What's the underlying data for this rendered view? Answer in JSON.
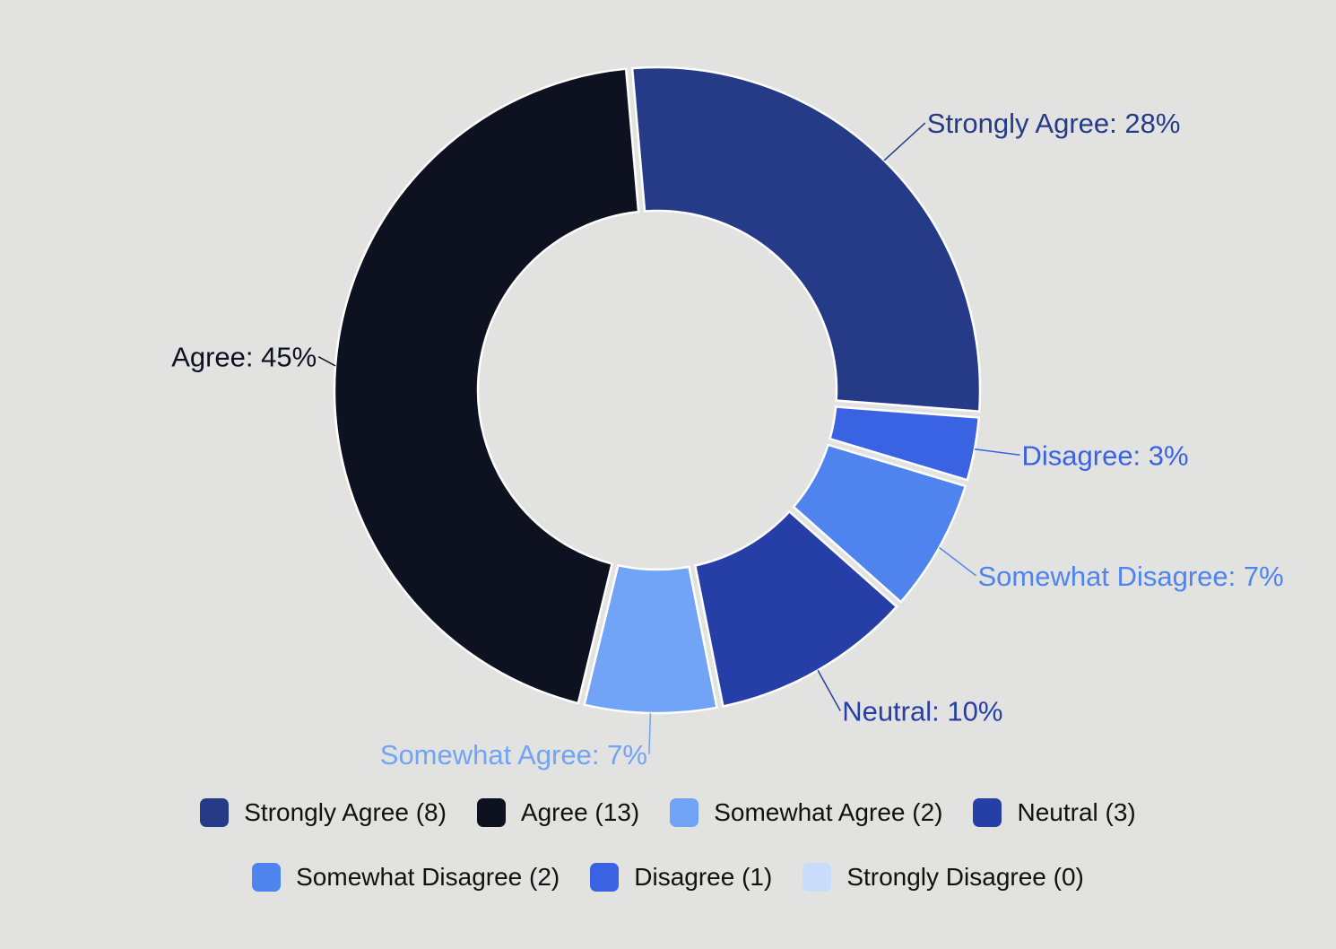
{
  "chart_data": {
    "type": "pie",
    "variant": "donut",
    "title": "",
    "slices": [
      {
        "name": "Strongly Agree",
        "count": 8,
        "percent_label": "Strongly Agree: 28%",
        "legend_label": "Strongly Agree (8)",
        "color": "#263b87"
      },
      {
        "name": "Disagree",
        "count": 1,
        "percent_label": "Disagree: 3%",
        "legend_label": "Disagree (1)",
        "color": "#3963e3"
      },
      {
        "name": "Somewhat Disagree",
        "count": 2,
        "percent_label": "Somewhat Disagree: 7%",
        "legend_label": "Somewhat Disagree (2)",
        "color": "#4f84ef"
      },
      {
        "name": "Neutral",
        "count": 3,
        "percent_label": "Neutral: 10%",
        "legend_label": "Neutral (3)",
        "color": "#263fa7"
      },
      {
        "name": "Somewhat Agree",
        "count": 2,
        "percent_label": "Somewhat Agree: 7%",
        "legend_label": "Somewhat Agree (2)",
        "color": "#71a4f6"
      },
      {
        "name": "Agree",
        "count": 13,
        "percent_label": "Agree: 45%",
        "legend_label": "Agree (13)",
        "color": "#0d1120"
      }
    ],
    "legend": {
      "placement": "bottom",
      "rows": [
        [
          {
            "label": "Strongly Agree (8)",
            "color": "#263b87"
          },
          {
            "label": "Agree (13)",
            "color": "#0d1120"
          },
          {
            "label": "Somewhat Agree (2)",
            "color": "#71a4f6"
          },
          {
            "label": "Neutral (3)",
            "color": "#263fa7"
          }
        ],
        [
          {
            "label": "Somewhat Disagree (2)",
            "color": "#4f84ef"
          },
          {
            "label": "Disagree (1)",
            "color": "#3963e3"
          },
          {
            "label": "Strongly Disagree (0)",
            "color": "#c9dcfb"
          }
        ]
      ]
    }
  },
  "colors": {
    "background": "#e2e2e1",
    "slice_border": "#ffffff"
  }
}
